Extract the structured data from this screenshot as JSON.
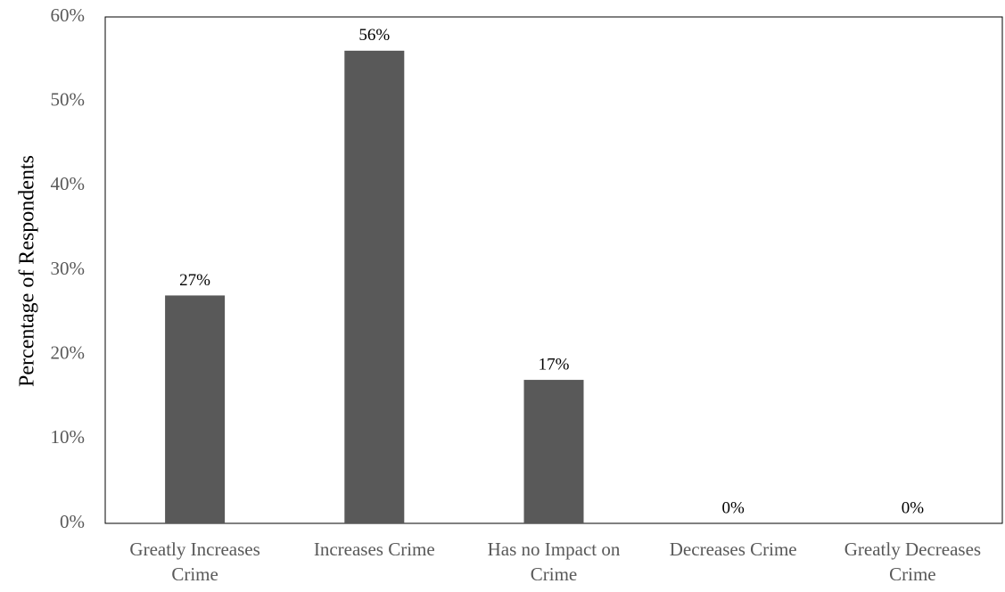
{
  "chart_data": {
    "type": "bar",
    "categories": [
      [
        "Greatly Increases",
        "Crime"
      ],
      [
        "Increases Crime"
      ],
      [
        "Has no Impact on",
        "Crime"
      ],
      [
        "Decreases Crime"
      ],
      [
        "Greatly Decreases",
        "Crime"
      ]
    ],
    "values": [
      27,
      56,
      17,
      0,
      0
    ],
    "data_labels": [
      "27%",
      "56%",
      "17%",
      "0%",
      "0%"
    ],
    "title": "",
    "xlabel": "",
    "ylabel": "Percentage of Respondents",
    "ylim": [
      0,
      60
    ],
    "yticks": [
      "0%",
      "10%",
      "20%",
      "30%",
      "40%",
      "50%",
      "60%"
    ],
    "grid": false,
    "legend": "none",
    "bar_color": "#595959"
  }
}
